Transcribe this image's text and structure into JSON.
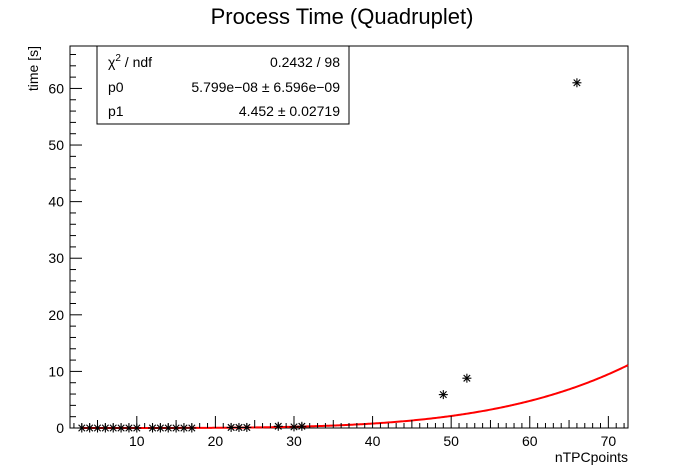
{
  "chart_data": {
    "type": "scatter",
    "title": "Process Time (Quadruplet)",
    "xlabel": "nTPCpoints",
    "ylabel": "time [s]",
    "xlim": [
      1.5,
      72.5
    ],
    "ylim": [
      0,
      67.5
    ],
    "x_ticks": [
      10,
      20,
      30,
      40,
      50,
      60,
      70
    ],
    "y_ticks": [
      0,
      10,
      20,
      30,
      40,
      50,
      60
    ],
    "grid": false,
    "marker": "asterisk",
    "points": [
      {
        "x": 3,
        "y": 0.0
      },
      {
        "x": 4,
        "y": 0.0
      },
      {
        "x": 5,
        "y": 0.0
      },
      {
        "x": 6,
        "y": 0.0
      },
      {
        "x": 7,
        "y": 0.0
      },
      {
        "x": 8,
        "y": 0.0
      },
      {
        "x": 9,
        "y": 0.0
      },
      {
        "x": 10,
        "y": 0.0
      },
      {
        "x": 12,
        "y": 0.0
      },
      {
        "x": 13,
        "y": 0.0
      },
      {
        "x": 14,
        "y": 0.0
      },
      {
        "x": 15,
        "y": 0.0
      },
      {
        "x": 16,
        "y": 0.0
      },
      {
        "x": 17,
        "y": 0.0
      },
      {
        "x": 22,
        "y": 0.1
      },
      {
        "x": 23,
        "y": 0.1
      },
      {
        "x": 24,
        "y": 0.1
      },
      {
        "x": 28,
        "y": 0.3
      },
      {
        "x": 30,
        "y": 0.2
      },
      {
        "x": 31,
        "y": 0.3
      },
      {
        "x": 49,
        "y": 5.9
      },
      {
        "x": 52,
        "y": 8.8
      },
      {
        "x": 66,
        "y": 61.0
      }
    ],
    "fit": {
      "function": "p0*x^p1",
      "color": "#ff0000",
      "p0": 5.799e-08,
      "p1": 4.452,
      "x_range": [
        3,
        72.5
      ]
    },
    "stats_box": {
      "position": "top-left",
      "rows": [
        {
          "label": "ndf",
          "value": "0.2432 / 98"
        },
        {
          "label": "p0",
          "value": "5.799e−08 ± 6.596e−09"
        },
        {
          "label": "p1",
          "value": "4.452 ± 0.02719"
        }
      ],
      "chi_symbol": "χ",
      "chi_superscript": "2",
      "chi_sep": " / "
    }
  }
}
